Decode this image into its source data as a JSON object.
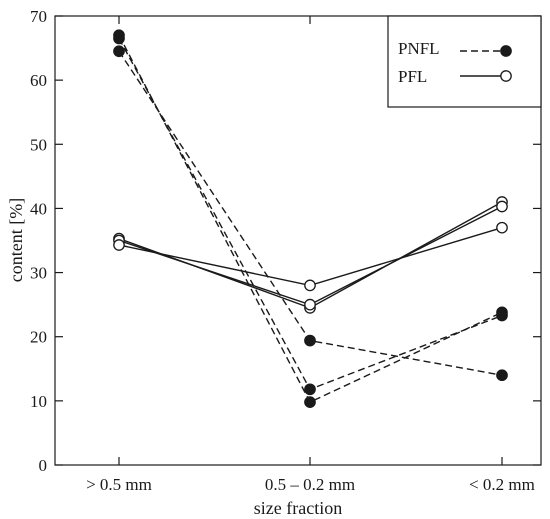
{
  "chart_data": {
    "type": "line",
    "title": "",
    "xlabel": "size fraction",
    "ylabel": "content [%]",
    "categories": [
      "> 0.5 mm",
      "0.5 – 0.2 mm",
      "< 0.2 mm"
    ],
    "ylim": [
      0,
      70
    ],
    "yticks": [
      0,
      10,
      20,
      30,
      40,
      50,
      60,
      70
    ],
    "grid": false,
    "legend_position": "top-right",
    "legend": [
      {
        "label": "PNFL",
        "line_style": "dashed",
        "marker": "filled-circle"
      },
      {
        "label": "PFL",
        "line_style": "solid",
        "marker": "open-circle"
      }
    ],
    "series": [
      {
        "group": "PNFL",
        "values": [
          67.0,
          9.8,
          23.8
        ]
      },
      {
        "group": "PNFL",
        "values": [
          66.5,
          11.8,
          23.3
        ]
      },
      {
        "group": "PNFL",
        "values": [
          64.5,
          19.4,
          14.0
        ]
      },
      {
        "group": "PFL",
        "values": [
          35.3,
          24.5,
          41.0
        ]
      },
      {
        "group": "PFL",
        "values": [
          35.0,
          25.0,
          40.3
        ]
      },
      {
        "group": "PFL",
        "values": [
          34.3,
          28.0,
          37.0
        ]
      }
    ]
  }
}
